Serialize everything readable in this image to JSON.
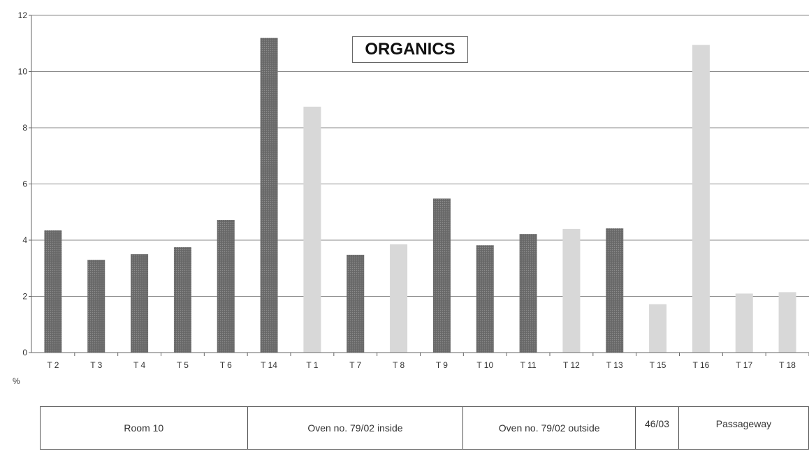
{
  "chart_data": {
    "type": "bar",
    "title": "ORGANICS",
    "ylabel": "%",
    "ylim": [
      0,
      12
    ],
    "yticks": [
      0,
      2,
      4,
      6,
      8,
      10,
      12
    ],
    "grid": true,
    "categories": [
      "T 2",
      "T 3",
      "T 4",
      "T 5",
      "T 6",
      "T 14",
      "T 1",
      "T 7",
      "T 8",
      "T 9",
      "T 10",
      "T 11",
      "T 12",
      "T 13",
      "T 15",
      "T 16",
      "T 17",
      "T 18"
    ],
    "values": [
      4.35,
      3.3,
      3.5,
      3.75,
      4.72,
      11.2,
      8.75,
      3.48,
      3.85,
      5.48,
      3.82,
      4.22,
      4.4,
      4.42,
      1.72,
      10.95,
      2.1,
      2.15
    ],
    "bar_fill": [
      "dark",
      "dark",
      "dark",
      "dark",
      "dark",
      "dark",
      "light",
      "dark",
      "light",
      "dark",
      "dark",
      "dark",
      "light",
      "dark",
      "light",
      "light",
      "light",
      "light"
    ],
    "colors": {
      "dark": "#6e6e6e",
      "light": "#d8d8d8",
      "grid": "#8a8a8a",
      "axis": "#666666"
    },
    "groups": [
      {
        "label": "Room 10",
        "span": 5
      },
      {
        "label": "Oven no. 79/02 inside",
        "span": 5
      },
      {
        "label": "Oven no. 79/02 outside",
        "span": 4
      },
      {
        "label": "46/03",
        "span": 1
      },
      {
        "label": "Passageway",
        "span": 3
      }
    ]
  }
}
